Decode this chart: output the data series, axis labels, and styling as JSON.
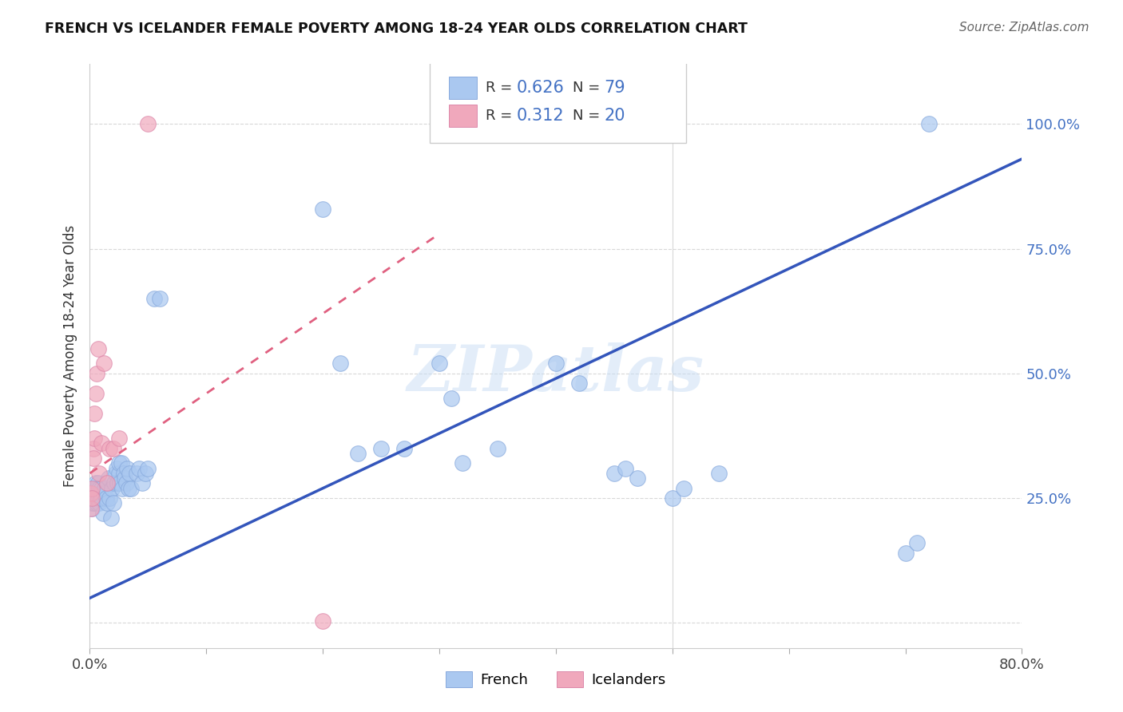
{
  "title": "FRENCH VS ICELANDER FEMALE POVERTY AMONG 18-24 YEAR OLDS CORRELATION CHART",
  "source": "Source: ZipAtlas.com",
  "ylabel": "Female Poverty Among 18-24 Year Olds",
  "xlim": [
    0.0,
    0.8
  ],
  "ylim": [
    -0.05,
    1.12
  ],
  "french_color": "#aac8f0",
  "french_edge_color": "#88aadd",
  "icelander_color": "#f0a8bc",
  "icelander_edge_color": "#dd88aa",
  "french_line_color": "#3355bb",
  "icelander_line_color": "#e06080",
  "icelander_line_dashed": true,
  "watermark_color": "#c8ddf5",
  "grid_color": "#d8d8d8",
  "ytick_color": "#4472c4",
  "legend_r_color": "#4472c4",
  "legend_n_color": "#333333",
  "french_line_x0": 0.0,
  "french_line_y0": 0.05,
  "french_line_x1": 0.8,
  "french_line_y1": 0.93,
  "icelander_line_x0": 0.0,
  "icelander_line_y0": 0.3,
  "icelander_line_x1": 0.3,
  "icelander_line_y1": 0.78,
  "french_x": [
    0.001,
    0.001,
    0.001,
    0.002,
    0.002,
    0.002,
    0.003,
    0.003,
    0.003,
    0.004,
    0.004,
    0.004,
    0.005,
    0.005,
    0.005,
    0.006,
    0.006,
    0.007,
    0.007,
    0.007,
    0.008,
    0.008,
    0.009,
    0.009,
    0.01,
    0.01,
    0.011,
    0.012,
    0.013,
    0.014,
    0.015,
    0.016,
    0.017,
    0.018,
    0.019,
    0.02,
    0.021,
    0.022,
    0.023,
    0.024,
    0.025,
    0.025,
    0.026,
    0.027,
    0.028,
    0.029,
    0.03,
    0.031,
    0.032,
    0.033,
    0.034,
    0.035,
    0.04,
    0.042,
    0.045,
    0.048,
    0.05,
    0.055,
    0.06,
    0.2,
    0.215,
    0.23,
    0.25,
    0.27,
    0.3,
    0.31,
    0.32,
    0.35,
    0.4,
    0.42,
    0.45,
    0.46,
    0.47,
    0.5,
    0.51,
    0.54,
    0.7,
    0.71,
    0.72
  ],
  "french_y": [
    0.25,
    0.26,
    0.24,
    0.25,
    0.27,
    0.23,
    0.26,
    0.24,
    0.25,
    0.27,
    0.25,
    0.24,
    0.26,
    0.28,
    0.25,
    0.24,
    0.27,
    0.26,
    0.25,
    0.28,
    0.24,
    0.27,
    0.25,
    0.26,
    0.25,
    0.27,
    0.22,
    0.26,
    0.27,
    0.25,
    0.24,
    0.29,
    0.25,
    0.21,
    0.27,
    0.24,
    0.28,
    0.3,
    0.31,
    0.28,
    0.3,
    0.32,
    0.28,
    0.32,
    0.27,
    0.3,
    0.29,
    0.28,
    0.31,
    0.27,
    0.3,
    0.27,
    0.3,
    0.31,
    0.28,
    0.3,
    0.31,
    0.65,
    0.65,
    0.83,
    0.52,
    0.34,
    0.35,
    0.35,
    0.52,
    0.45,
    0.32,
    0.35,
    0.52,
    0.48,
    0.3,
    0.31,
    0.29,
    0.25,
    0.27,
    0.3,
    0.14,
    0.16,
    1.0
  ],
  "icelander_x": [
    0.001,
    0.001,
    0.002,
    0.002,
    0.003,
    0.003,
    0.004,
    0.004,
    0.005,
    0.006,
    0.007,
    0.008,
    0.01,
    0.012,
    0.015,
    0.017,
    0.02,
    0.025,
    0.05,
    0.2
  ],
  "icelander_y": [
    0.26,
    0.23,
    0.27,
    0.25,
    0.35,
    0.33,
    0.42,
    0.37,
    0.46,
    0.5,
    0.55,
    0.3,
    0.36,
    0.52,
    0.28,
    0.35,
    0.35,
    0.37,
    1.0,
    0.004
  ]
}
